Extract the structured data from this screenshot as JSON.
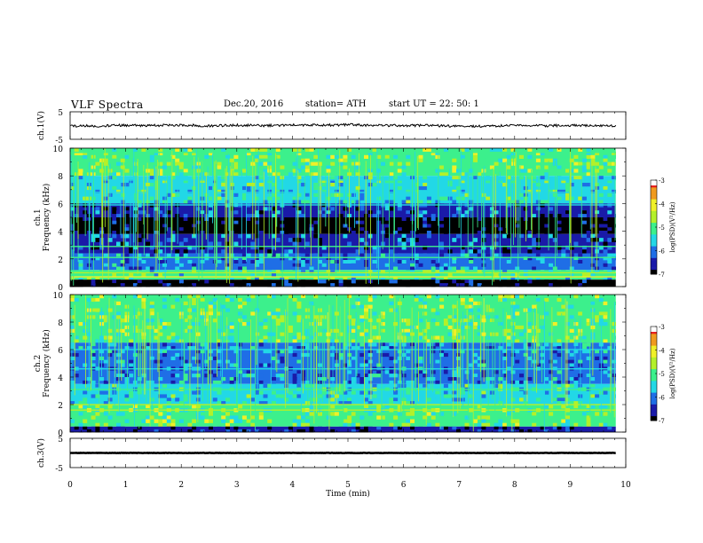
{
  "header": {
    "title": "VLF  Spectra",
    "date": "Dec.20, 2016",
    "station": "station= ATH",
    "start": "start  UT  =    22: 50: 1"
  },
  "chart_data": [
    {
      "type": "line",
      "name": "ch1-waveform",
      "ylabel": "ch.1(V)",
      "xlim": [
        0,
        10
      ],
      "ylim": [
        -5,
        5
      ],
      "y_ticks": [
        "5",
        "-5"
      ],
      "line_color": "#000000",
      "x": [
        0.0,
        0.5,
        1.0,
        1.5,
        2.0,
        2.5,
        3.0,
        3.5,
        4.0,
        4.5,
        5.0,
        5.5,
        6.0,
        6.5,
        7.0,
        7.5,
        8.0,
        8.5,
        9.0,
        9.5,
        9.82
      ],
      "values": [
        -0.2,
        -0.1,
        0.1,
        0.0,
        0.2,
        -0.1,
        0.1,
        0.0,
        0.2,
        0.1,
        0.3,
        0.1,
        0.0,
        0.1,
        -0.3,
        -0.2,
        0.0,
        -0.1,
        0.1,
        -0.1,
        0.0
      ]
    },
    {
      "type": "heatmap",
      "name": "ch1-spectrogram",
      "ylabel": "ch.1\nFrequency  (kHz)",
      "xlim": [
        0,
        10
      ],
      "ylim": [
        0,
        10
      ],
      "y_ticks": [
        "0",
        "2",
        "4",
        "6",
        "8",
        "10"
      ],
      "data_extent_min": 9.82,
      "colorbar": {
        "label": "log(PSD)(V²/Hz)",
        "range": [
          -7,
          -3
        ],
        "ticks": [
          "-3",
          "-4",
          "-5",
          "-6",
          "-7"
        ]
      },
      "bands": [
        {
          "f": [
            8.0,
            10.0
          ],
          "level": -4.8
        },
        {
          "f": [
            6.0,
            8.0
          ],
          "level": -5.4
        },
        {
          "f": [
            5.0,
            6.0
          ],
          "level": -6.3
        },
        {
          "f": [
            3.8,
            5.0
          ],
          "level": -7.0
        },
        {
          "f": [
            2.4,
            3.8
          ],
          "level": -6.3
        },
        {
          "f": [
            1.2,
            2.4
          ],
          "level": -6.0
        },
        {
          "f": [
            0.5,
            1.2
          ],
          "level": -5.2
        },
        {
          "f": [
            0.0,
            0.5
          ],
          "level": -6.8
        }
      ],
      "lines": [
        {
          "f": 0.7,
          "level": -3.8
        },
        {
          "f": 1.0,
          "level": -4.6
        },
        {
          "f": 2.1,
          "level": -4.9
        },
        {
          "f": 2.9,
          "level": -5.2
        },
        {
          "f": 5.9,
          "level": -5.3
        },
        {
          "f": 6.8,
          "level": -5.4
        },
        {
          "f": 7.7,
          "level": -5.6
        },
        {
          "f": 9.7,
          "level": -5.2
        }
      ]
    },
    {
      "type": "heatmap",
      "name": "ch2-spectrogram",
      "ylabel": "ch.2\nFrequency  (kHz)",
      "xlim": [
        0,
        10
      ],
      "ylim": [
        0,
        10
      ],
      "y_ticks": [
        "0",
        "2",
        "4",
        "6",
        "8",
        "10"
      ],
      "data_extent_min": 9.82,
      "colorbar": {
        "label": "log(PSD)(V²/Hz)",
        "range": [
          -7,
          -3
        ],
        "ticks": [
          "-3",
          "-4",
          "-5",
          "-6",
          "-7"
        ]
      },
      "bands": [
        {
          "f": [
            6.5,
            10.0
          ],
          "level": -4.9
        },
        {
          "f": [
            5.0,
            6.5
          ],
          "level": -5.9
        },
        {
          "f": [
            3.5,
            5.0
          ],
          "level": -6.0
        },
        {
          "f": [
            2.0,
            3.5
          ],
          "level": -5.5
        },
        {
          "f": [
            0.4,
            2.0
          ],
          "level": -4.9
        },
        {
          "f": [
            0.0,
            0.4
          ],
          "level": -6.7
        }
      ],
      "lines": [
        {
          "f": 1.6,
          "level": -4.4
        },
        {
          "f": 2.0,
          "level": -4.6
        },
        {
          "f": 3.1,
          "level": -5.2
        },
        {
          "f": 4.6,
          "level": -5.3
        },
        {
          "f": 6.0,
          "level": -5.6
        }
      ]
    },
    {
      "type": "line",
      "name": "ch3-waveform",
      "ylabel": "ch.3(V)",
      "xlim": [
        0,
        10
      ],
      "ylim": [
        -5,
        5
      ],
      "y_ticks": [
        "5",
        "-5"
      ],
      "line_color": "#000000",
      "x": [
        0.0,
        9.82
      ],
      "values": [
        0.0,
        0.0
      ]
    }
  ],
  "xaxis": {
    "label": "Time  (min)",
    "ticks": [
      "0",
      "1",
      "2",
      "3",
      "4",
      "5",
      "6",
      "7",
      "8",
      "9",
      "10"
    ]
  },
  "colors": {
    "colormap": [
      "#000000",
      "#1a1aa8",
      "#1f6ee6",
      "#22d8e6",
      "#3cf08c",
      "#b4f02a",
      "#f0f028",
      "#f09a1e",
      "#e62020",
      "#ffffff"
    ]
  }
}
